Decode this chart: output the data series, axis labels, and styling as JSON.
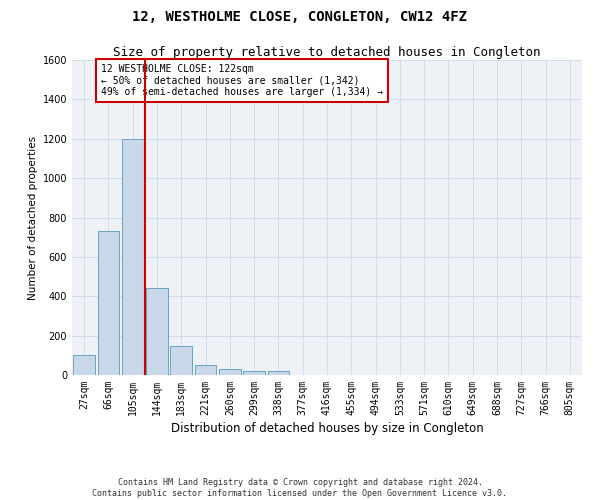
{
  "title": "12, WESTHOLME CLOSE, CONGLETON, CW12 4FZ",
  "subtitle": "Size of property relative to detached houses in Congleton",
  "xlabel": "Distribution of detached houses by size in Congleton",
  "ylabel": "Number of detached properties",
  "footer_line1": "Contains HM Land Registry data © Crown copyright and database right 2024.",
  "footer_line2": "Contains public sector information licensed under the Open Government Licence v3.0.",
  "categories": [
    "27sqm",
    "66sqm",
    "105sqm",
    "144sqm",
    "183sqm",
    "221sqm",
    "260sqm",
    "299sqm",
    "338sqm",
    "377sqm",
    "416sqm",
    "455sqm",
    "494sqm",
    "533sqm",
    "571sqm",
    "610sqm",
    "649sqm",
    "688sqm",
    "727sqm",
    "766sqm",
    "805sqm"
  ],
  "values": [
    100,
    730,
    1200,
    440,
    145,
    50,
    30,
    20,
    20,
    0,
    0,
    0,
    0,
    0,
    0,
    0,
    0,
    0,
    0,
    0,
    0
  ],
  "bar_color": "#c8d8e8",
  "bar_edge_color": "#5599bb",
  "vline_x": 2.5,
  "vline_color": "#cc0000",
  "annotation_text": "12 WESTHOLME CLOSE: 122sqm\n← 50% of detached houses are smaller (1,342)\n49% of semi-detached houses are larger (1,334) →",
  "annotation_box_edgecolor": "#cc0000",
  "ylim": [
    0,
    1600
  ],
  "yticks": [
    0,
    200,
    400,
    600,
    800,
    1000,
    1200,
    1400,
    1600
  ],
  "grid_color": "#ccd9e8",
  "bg_color": "#eef2f7",
  "title_fontsize": 10,
  "subtitle_fontsize": 9,
  "xlabel_fontsize": 8.5,
  "ylabel_fontsize": 7.5,
  "tick_fontsize": 7,
  "annotation_fontsize": 7,
  "footer_fontsize": 6
}
